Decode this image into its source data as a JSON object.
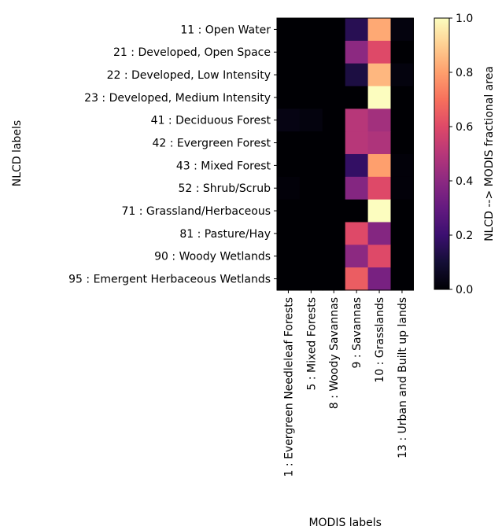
{
  "chart_data": {
    "type": "heatmap",
    "title": "",
    "xlabel": "MODIS labels",
    "ylabel": "NLCD labels",
    "y_categories": [
      "11 : Open Water",
      "21 : Developed, Open Space",
      "22 : Developed, Low Intensity",
      "23 : Developed, Medium Intensity",
      "41 : Deciduous Forest",
      "42 : Evergreen Forest",
      "43 : Mixed Forest",
      "52 : Shrub/Scrub",
      "71 : Grassland/Herbaceous",
      "81 : Pasture/Hay",
      "90 : Woody Wetlands",
      "95 : Emergent Herbaceous Wetlands"
    ],
    "x_categories": [
      "1 : Evergreen Needleleaf Forests",
      "5 : Mixed Forests",
      "8 : Woody Savannas",
      "9 : Savannas",
      "10 : Grasslands",
      "13 : Urban and Built up lands"
    ],
    "values": [
      [
        0.0,
        0.0,
        0.0,
        0.15,
        0.82,
        0.02
      ],
      [
        0.0,
        0.0,
        0.0,
        0.4,
        0.6,
        0.0
      ],
      [
        0.0,
        0.0,
        0.0,
        0.12,
        0.85,
        0.02
      ],
      [
        0.0,
        0.0,
        0.0,
        0.0,
        1.0,
        0.0
      ],
      [
        0.03,
        0.02,
        0.0,
        0.5,
        0.45,
        0.0
      ],
      [
        0.0,
        0.0,
        0.0,
        0.5,
        0.48,
        0.0
      ],
      [
        0.0,
        0.0,
        0.0,
        0.18,
        0.8,
        0.01
      ],
      [
        0.01,
        0.0,
        0.0,
        0.38,
        0.6,
        0.01
      ],
      [
        0.0,
        0.0,
        0.0,
        0.0,
        1.0,
        0.0
      ],
      [
        0.0,
        0.0,
        0.0,
        0.6,
        0.38,
        0.0
      ],
      [
        0.0,
        0.0,
        0.0,
        0.4,
        0.6,
        0.0
      ],
      [
        0.0,
        0.0,
        0.0,
        0.65,
        0.35,
        0.0
      ]
    ],
    "colormap": "magma",
    "colorbar": {
      "label": "NLCD --> MODIS fractional area",
      "range": [
        0.0,
        1.0
      ],
      "ticks": [
        "0.0",
        "0.2",
        "0.4",
        "0.6",
        "0.8",
        "1.0"
      ]
    }
  }
}
